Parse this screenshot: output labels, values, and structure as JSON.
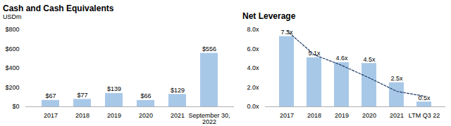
{
  "chart_data": [
    {
      "type": "bar",
      "title": "Cash and Cash Equivalents",
      "subtitle": "USDm",
      "categories": [
        "2017",
        "2018",
        "2019",
        "2020",
        "2021",
        "September 30,\n2022"
      ],
      "values": [
        67,
        77,
        139,
        66,
        129,
        556
      ],
      "value_labels": [
        "$67",
        "$77",
        "$139",
        "$66",
        "$129",
        "$556"
      ],
      "color": "#a8c8e8",
      "ylim": [
        0,
        800
      ],
      "yticks": [
        {
          "value": 0,
          "label": "$0"
        },
        {
          "value": 200,
          "label": "$200"
        },
        {
          "value": 400,
          "label": "$400"
        },
        {
          "value": 600,
          "label": "$600"
        },
        {
          "value": 800,
          "label": "$800"
        }
      ],
      "data_labels": true,
      "grid": false
    },
    {
      "type": "bar",
      "title": "Net Leverage",
      "categories": [
        "2017",
        "2018",
        "2019",
        "2020",
        "2021",
        "LTM Q3 22"
      ],
      "series": [
        {
          "type": "bar",
          "color": "#a8c8e8",
          "values": [
            7.3,
            5.1,
            4.6,
            4.5,
            2.5,
            0.5
          ],
          "value_labels": [
            "7.3x",
            "5.1x",
            "4.6x",
            "4.5x",
            "2.5x",
            "0.5x"
          ]
        },
        {
          "type": "line",
          "color": "#1f3864",
          "line_style": "dashed",
          "values": [
            7.9,
            5.4,
            4.3,
            3.0,
            1.6,
            1.1
          ]
        }
      ],
      "ylim": [
        0,
        8
      ],
      "yticks": [
        {
          "value": 0,
          "label": "0.0x"
        },
        {
          "value": 2,
          "label": "2.0x"
        },
        {
          "value": 4,
          "label": "4.0x"
        },
        {
          "value": 6,
          "label": "6.0x"
        },
        {
          "value": 8,
          "label": "8.0x"
        }
      ],
      "data_labels": true,
      "grid": false
    }
  ]
}
